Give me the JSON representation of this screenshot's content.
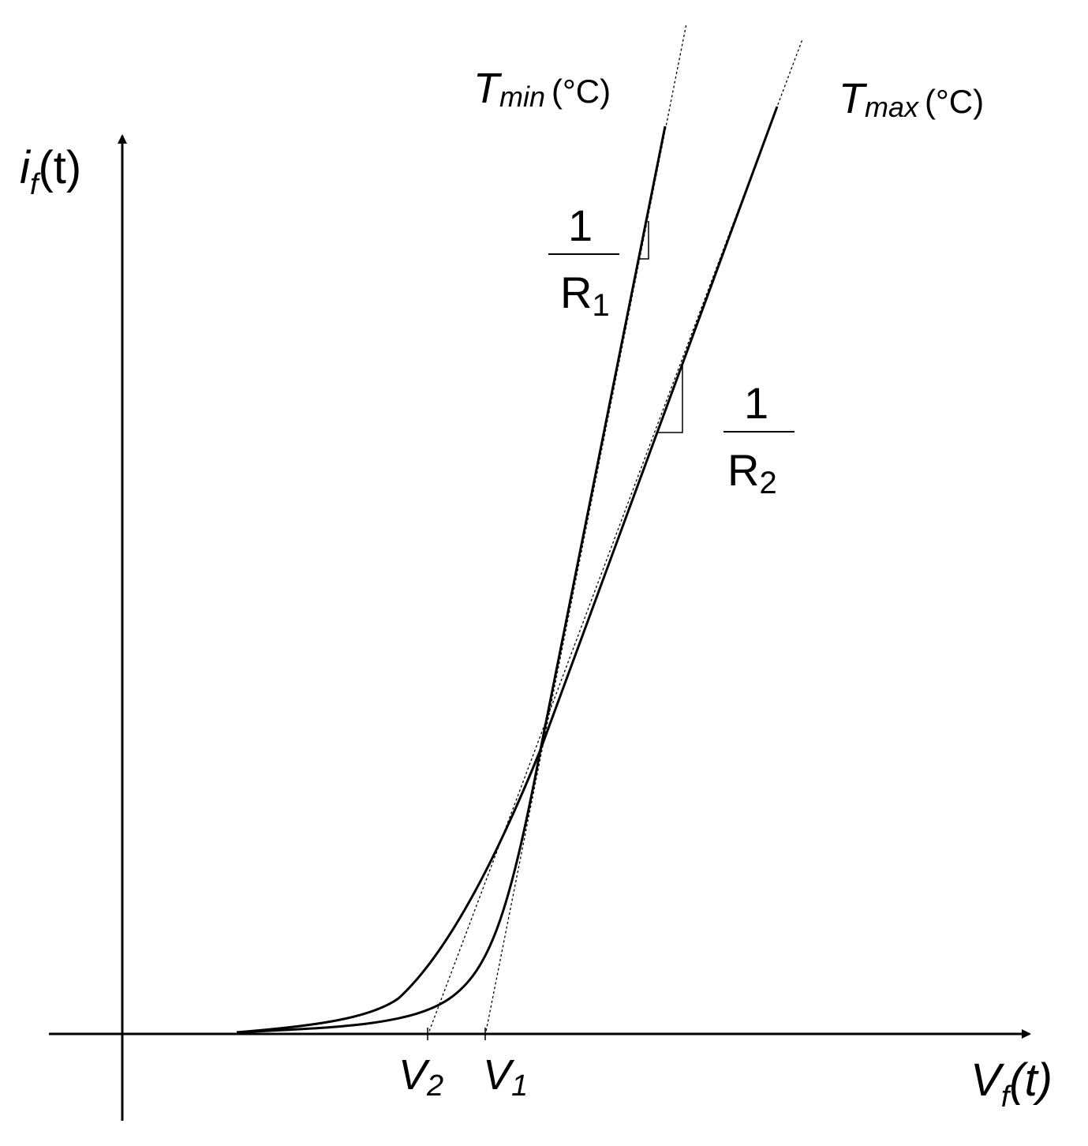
{
  "axes": {
    "y_label": {
      "main": "i",
      "sub": "f",
      "tail": "(t)"
    },
    "x_label": {
      "main": "V",
      "sub": "f",
      "tail": "(t)"
    }
  },
  "curves": {
    "tmin_label": {
      "main": "T",
      "sub": "min",
      "unit": "(°C)"
    },
    "tmax_label": {
      "main": "T",
      "sub": "max",
      "unit": "(°C)"
    }
  },
  "slopes": {
    "r1": {
      "numerator": "1",
      "denominator": "R",
      "sub": "1"
    },
    "r2": {
      "numerator": "1",
      "denominator": "R",
      "sub": "2"
    }
  },
  "ticks": {
    "v2": {
      "main": "V",
      "sub": "2"
    },
    "v1": {
      "main": "V",
      "sub": "1"
    }
  },
  "colors": {
    "ink": "#000000",
    "background": "#ffffff"
  }
}
